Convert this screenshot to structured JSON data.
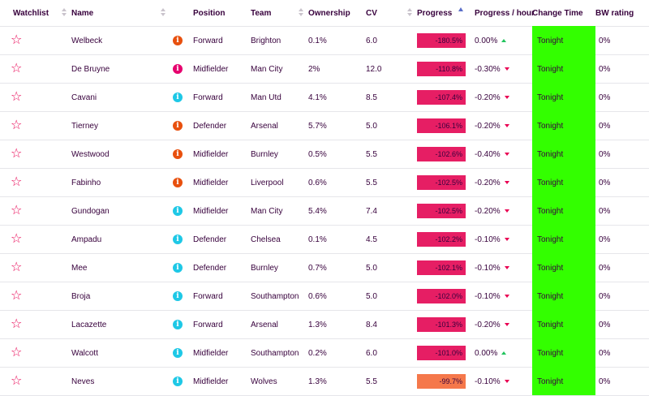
{
  "headers": {
    "watchlist": "Watchlist",
    "name": "Name",
    "position": "Position",
    "team": "Team",
    "ownership": "Ownership",
    "cv": "CV",
    "progress": "Progress",
    "progress_hour": "Progress / hour",
    "change_time": "Change Time",
    "bw_rating": "BW rating"
  },
  "icons": {
    "watch": "star-outline-icon",
    "info": "info-icon"
  },
  "colors": {
    "star": "#e90052",
    "status_orange": "#e8500e",
    "status_pink": "#e6006e",
    "status_cyan": "#1ec8e6",
    "progress_red": "#e61e64",
    "progress_orange": "#f5784b",
    "change_time_bg": "#33ff00",
    "arrow_down": "#e90052",
    "arrow_up": "#21c45d"
  },
  "rows": [
    {
      "name": "Welbeck",
      "status": "orange",
      "position": "Forward",
      "team": "Brighton",
      "ownership": "0.1%",
      "cv": "6.0",
      "progress": "-180.5%",
      "progress_color": "red",
      "progress_hour": "0.00%",
      "trend": "up",
      "change_time": "Tonight",
      "bw_rating": "0%"
    },
    {
      "name": "De Bruyne",
      "status": "pink",
      "position": "Midfielder",
      "team": "Man City",
      "ownership": "2%",
      "cv": "12.0",
      "progress": "-110.8%",
      "progress_color": "red",
      "progress_hour": "-0.30%",
      "trend": "down",
      "change_time": "Tonight",
      "bw_rating": "0%"
    },
    {
      "name": "Cavani",
      "status": "cyan",
      "position": "Forward",
      "team": "Man Utd",
      "ownership": "4.1%",
      "cv": "8.5",
      "progress": "-107.4%",
      "progress_color": "red",
      "progress_hour": "-0.20%",
      "trend": "down",
      "change_time": "Tonight",
      "bw_rating": "0%"
    },
    {
      "name": "Tierney",
      "status": "orange",
      "position": "Defender",
      "team": "Arsenal",
      "ownership": "5.7%",
      "cv": "5.0",
      "progress": "-106.1%",
      "progress_color": "red",
      "progress_hour": "-0.20%",
      "trend": "down",
      "change_time": "Tonight",
      "bw_rating": "0%"
    },
    {
      "name": "Westwood",
      "status": "orange",
      "position": "Midfielder",
      "team": "Burnley",
      "ownership": "0.5%",
      "cv": "5.5",
      "progress": "-102.6%",
      "progress_color": "red",
      "progress_hour": "-0.40%",
      "trend": "down",
      "change_time": "Tonight",
      "bw_rating": "0%"
    },
    {
      "name": "Fabinho",
      "status": "orange",
      "position": "Midfielder",
      "team": "Liverpool",
      "ownership": "0.6%",
      "cv": "5.5",
      "progress": "-102.5%",
      "progress_color": "red",
      "progress_hour": "-0.20%",
      "trend": "down",
      "change_time": "Tonight",
      "bw_rating": "0%"
    },
    {
      "name": "Gundogan",
      "status": "cyan",
      "position": "Midfielder",
      "team": "Man City",
      "ownership": "5.4%",
      "cv": "7.4",
      "progress": "-102.5%",
      "progress_color": "red",
      "progress_hour": "-0.20%",
      "trend": "down",
      "change_time": "Tonight",
      "bw_rating": "0%"
    },
    {
      "name": "Ampadu",
      "status": "cyan",
      "position": "Defender",
      "team": "Chelsea",
      "ownership": "0.1%",
      "cv": "4.5",
      "progress": "-102.2%",
      "progress_color": "red",
      "progress_hour": "-0.10%",
      "trend": "down",
      "change_time": "Tonight",
      "bw_rating": "0%"
    },
    {
      "name": "Mee",
      "status": "cyan",
      "position": "Defender",
      "team": "Burnley",
      "ownership": "0.7%",
      "cv": "5.0",
      "progress": "-102.1%",
      "progress_color": "red",
      "progress_hour": "-0.10%",
      "trend": "down",
      "change_time": "Tonight",
      "bw_rating": "0%"
    },
    {
      "name": "Broja",
      "status": "cyan",
      "position": "Forward",
      "team": "Southampton",
      "ownership": "0.6%",
      "cv": "5.0",
      "progress": "-102.0%",
      "progress_color": "red",
      "progress_hour": "-0.10%",
      "trend": "down",
      "change_time": "Tonight",
      "bw_rating": "0%"
    },
    {
      "name": "Lacazette",
      "status": "cyan",
      "position": "Forward",
      "team": "Arsenal",
      "ownership": "1.3%",
      "cv": "8.4",
      "progress": "-101.3%",
      "progress_color": "red",
      "progress_hour": "-0.20%",
      "trend": "down",
      "change_time": "Tonight",
      "bw_rating": "0%"
    },
    {
      "name": "Walcott",
      "status": "cyan",
      "position": "Midfielder",
      "team": "Southampton",
      "ownership": "0.2%",
      "cv": "6.0",
      "progress": "-101.0%",
      "progress_color": "red",
      "progress_hour": "0.00%",
      "trend": "up",
      "change_time": "Tonight",
      "bw_rating": "0%"
    },
    {
      "name": "Neves",
      "status": "cyan",
      "position": "Midfielder",
      "team": "Wolves",
      "ownership": "1.3%",
      "cv": "5.5",
      "progress": "-99.7%",
      "progress_color": "orange",
      "progress_hour": "-0.10%",
      "trend": "down",
      "change_time": "Tonight",
      "bw_rating": "0%"
    }
  ]
}
